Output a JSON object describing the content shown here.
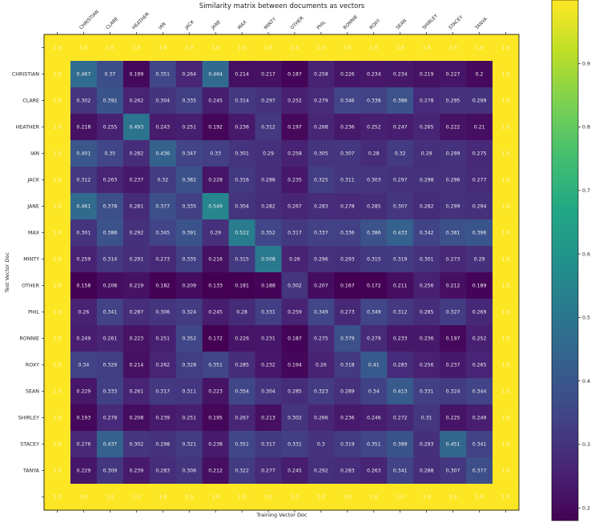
{
  "chart_data": {
    "type": "heatmap",
    "title": "Similarity matrix between documents as vectors",
    "xlabel": "Training Vector Doc",
    "ylabel": "Test Vector Doc",
    "columns": [
      "CHRISTIAN",
      "CLARE",
      "HEATHER",
      "IAN",
      "JACK",
      "JANE",
      "MAX",
      "MINTY",
      "OTHER",
      "PHIL",
      "RONNIE",
      "ROXY",
      "SEAN",
      "SHIRLEY",
      "STACEY",
      "TANYA"
    ],
    "rows": [
      "CHRISTIAN",
      "CLARE",
      "HEATHER",
      "IAN",
      "JACK",
      "JANE",
      "MAX",
      "MINTY",
      "OTHER",
      "PHIL",
      "RONNIE",
      "ROXY",
      "SEAN",
      "SHIRLEY",
      "STACEY",
      "TANYA"
    ],
    "border_value": 1.0,
    "border_label": "1.0",
    "values": [
      [
        0.467,
        0.37,
        0.199,
        0.351,
        0.264,
        0.464,
        0.214,
        0.217,
        0.187,
        0.258,
        0.226,
        0.234,
        0.234,
        0.219,
        0.227,
        0.2
      ],
      [
        0.302,
        0.392,
        0.262,
        0.304,
        0.335,
        0.245,
        0.314,
        0.297,
        0.252,
        0.279,
        0.346,
        0.338,
        0.386,
        0.278,
        0.295,
        0.299
      ],
      [
        0.218,
        0.255,
        0.493,
        0.243,
        0.251,
        0.192,
        0.236,
        0.312,
        0.197,
        0.268,
        0.236,
        0.252,
        0.247,
        0.265,
        0.222,
        0.21
      ],
      [
        0.401,
        0.35,
        0.282,
        0.436,
        0.347,
        0.33,
        0.301,
        0.29,
        0.258,
        0.305,
        0.307,
        0.28,
        0.32,
        0.29,
        0.299,
        0.275
      ],
      [
        0.312,
        0.263,
        0.237,
        0.32,
        0.382,
        0.228,
        0.316,
        0.288,
        0.235,
        0.325,
        0.311,
        0.303,
        0.297,
        0.298,
        0.296,
        0.277
      ],
      [
        0.461,
        0.378,
        0.281,
        0.377,
        0.335,
        0.549,
        0.304,
        0.282,
        0.267,
        0.283,
        0.278,
        0.285,
        0.307,
        0.282,
        0.299,
        0.294
      ],
      [
        0.301,
        0.388,
        0.292,
        0.345,
        0.391,
        0.29,
        0.522,
        0.352,
        0.317,
        0.337,
        0.336,
        0.386,
        0.433,
        0.342,
        0.381,
        0.396
      ],
      [
        0.259,
        0.314,
        0.291,
        0.273,
        0.335,
        0.216,
        0.315,
        0.508,
        0.26,
        0.296,
        0.293,
        0.315,
        0.319,
        0.301,
        0.273,
        0.29
      ],
      [
        0.158,
        0.208,
        0.219,
        0.182,
        0.209,
        0.133,
        0.181,
        0.188,
        0.302,
        0.207,
        0.167,
        0.172,
        0.211,
        0.256,
        0.212,
        0.189
      ],
      [
        0.26,
        0.341,
        0.287,
        0.306,
        0.324,
        0.245,
        0.28,
        0.331,
        0.259,
        0.349,
        0.273,
        0.349,
        0.312,
        0.285,
        0.327,
        0.269
      ],
      [
        0.249,
        0.261,
        0.223,
        0.251,
        0.352,
        0.172,
        0.226,
        0.231,
        0.187,
        0.275,
        0.379,
        0.279,
        0.233,
        0.236,
        0.197,
        0.252
      ],
      [
        0.34,
        0.329,
        0.214,
        0.262,
        0.328,
        0.351,
        0.285,
        0.232,
        0.194,
        0.26,
        0.318,
        0.41,
        0.283,
        0.256,
        0.237,
        0.265
      ],
      [
        0.229,
        0.333,
        0.261,
        0.317,
        0.311,
        0.223,
        0.354,
        0.304,
        0.285,
        0.323,
        0.289,
        0.34,
        0.413,
        0.331,
        0.324,
        0.344
      ],
      [
        0.193,
        0.278,
        0.208,
        0.239,
        0.251,
        0.195,
        0.267,
        0.213,
        0.302,
        0.266,
        0.236,
        0.246,
        0.272,
        0.31,
        0.225,
        0.249
      ],
      [
        0.276,
        0.437,
        0.302,
        0.298,
        0.321,
        0.238,
        0.351,
        0.317,
        0.331,
        0.3,
        0.319,
        0.351,
        0.389,
        0.293,
        0.451,
        0.341
      ],
      [
        0.229,
        0.309,
        0.239,
        0.283,
        0.306,
        0.212,
        0.322,
        0.277,
        0.245,
        0.292,
        0.283,
        0.263,
        0.341,
        0.288,
        0.307,
        0.377
      ]
    ],
    "colormap": "viridis",
    "color_range": [
      0.18,
      1.0
    ],
    "colorbar_ticks": [
      0.2,
      0.3,
      0.4,
      0.5,
      0.6,
      0.7,
      0.8,
      0.9
    ],
    "colorbar_labels": [
      "0.2",
      "0.3",
      "0.4",
      "0.5",
      "0.6",
      "0.7",
      "0.8",
      "0.9"
    ],
    "grid": false
  }
}
